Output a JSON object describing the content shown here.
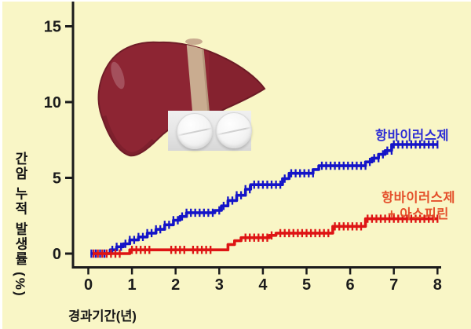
{
  "background_color": "#F9F6C6",
  "axis": {
    "color": "#1b1b1b",
    "text_color": "#151515"
  },
  "chart_data": {
    "type": "line",
    "subtype": "kaplan-meier-cumulative-incidence",
    "title": "",
    "xlabel": "경과기간(년)",
    "ylabel": "간암 누적 발생률 (%)",
    "xlim": [
      0,
      8
    ],
    "ylim": [
      0,
      16
    ],
    "x_ticks": [
      0,
      1,
      2,
      3,
      4,
      5,
      6,
      7,
      8
    ],
    "y_ticks": [
      0,
      5,
      10,
      15
    ],
    "grid": false,
    "legend_position": "inline-labels-right",
    "series": [
      {
        "name": "항바이러스제",
        "color": "#1414C8",
        "label_color": "#2B2BD5",
        "end_value_pct": 7.2,
        "points": [
          [
            0.05,
            0
          ],
          [
            0.42,
            0
          ],
          [
            0.5,
            0.25
          ],
          [
            0.65,
            0.45
          ],
          [
            0.8,
            0.65
          ],
          [
            0.95,
            0.9
          ],
          [
            1.15,
            1.1
          ],
          [
            1.35,
            1.35
          ],
          [
            1.55,
            1.6
          ],
          [
            1.75,
            1.9
          ],
          [
            1.95,
            2.2
          ],
          [
            2.1,
            2.45
          ],
          [
            2.25,
            2.7
          ],
          [
            2.9,
            2.85
          ],
          [
            3.05,
            3.15
          ],
          [
            3.2,
            3.5
          ],
          [
            3.4,
            3.85
          ],
          [
            3.6,
            4.25
          ],
          [
            3.72,
            4.55
          ],
          [
            4.45,
            4.95
          ],
          [
            4.6,
            5.3
          ],
          [
            5.15,
            5.55
          ],
          [
            5.28,
            5.8
          ],
          [
            6.35,
            6.05
          ],
          [
            6.5,
            6.3
          ],
          [
            6.65,
            6.55
          ],
          [
            6.8,
            6.8
          ],
          [
            6.95,
            7.2
          ],
          [
            8,
            7.2
          ]
        ],
        "censor_runs": [
          [
            0.07,
            0.45
          ],
          [
            0.55,
            2.9
          ],
          [
            3.0,
            3.7
          ],
          [
            3.8,
            4.5
          ],
          [
            4.65,
            5.2
          ],
          [
            5.35,
            6.35
          ],
          [
            6.45,
            6.95
          ],
          [
            7.0,
            8.0
          ]
        ]
      },
      {
        "name": "항바이러스제 + 아스피린",
        "color": "#DE1414",
        "label_color": "#E4502B",
        "end_value_pct": 2.3,
        "points": [
          [
            0.1,
            0
          ],
          [
            0.9,
            0
          ],
          [
            0.95,
            0.25
          ],
          [
            3.1,
            0.25
          ],
          [
            3.2,
            0.6
          ],
          [
            3.35,
            0.85
          ],
          [
            3.5,
            1.05
          ],
          [
            4.15,
            1.2
          ],
          [
            4.3,
            1.35
          ],
          [
            5.5,
            1.35
          ],
          [
            5.6,
            1.8
          ],
          [
            6.25,
            1.8
          ],
          [
            6.35,
            2.3
          ],
          [
            8,
            2.3
          ]
        ],
        "censor_runs": [
          [
            0.12,
            0.75
          ],
          [
            1.0,
            1.4
          ],
          [
            1.9,
            2.2
          ],
          [
            2.4,
            2.85
          ],
          [
            3.6,
            4.2
          ],
          [
            4.4,
            5.5
          ],
          [
            5.65,
            6.25
          ],
          [
            6.4,
            8.0
          ]
        ]
      }
    ]
  },
  "labels": {
    "series1": "항바이러스제",
    "series2_line1": "항바이러스제",
    "series2_line2": "+ 아스피린"
  },
  "illustrations": {
    "liver": {
      "body_color": "#8D2533",
      "outline_color": "#701D28",
      "band_color": "#C9AC90",
      "highlight_color": "#A85864",
      "shadow_color": "#6F1B27"
    },
    "pills": {
      "tablet_count": 2,
      "background": "#E5E5E5",
      "tablet_color": "#F4F4F4"
    }
  }
}
